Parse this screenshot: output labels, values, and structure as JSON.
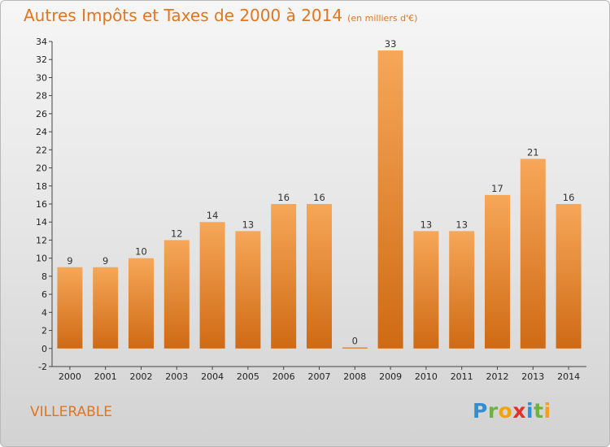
{
  "header": {
    "title": "Autres Impôts et Taxes de 2000 à 2014",
    "subtitle": "(en milliers d'€)"
  },
  "commune": "VILLERABLE",
  "logo": {
    "text": "Proxiti"
  },
  "colors": {
    "bar_top": "#f6a758",
    "bar_bottom": "#cf6a14",
    "title": "#e0761f"
  },
  "chart_data": {
    "type": "bar",
    "title": "Autres Impôts et Taxes de 2000 à 2014",
    "subtitle": "(en milliers d'€)",
    "categories": [
      "2000",
      "2001",
      "2002",
      "2003",
      "2004",
      "2005",
      "2006",
      "2007",
      "2008",
      "2009",
      "2010",
      "2011",
      "2012",
      "2013",
      "2014"
    ],
    "values": [
      9,
      9,
      10,
      12,
      14,
      13,
      16,
      16,
      0,
      33,
      13,
      13,
      17,
      21,
      16
    ],
    "ylim": [
      -2,
      34
    ],
    "yticks": [
      -2,
      0,
      2,
      4,
      6,
      8,
      10,
      12,
      14,
      16,
      18,
      20,
      22,
      24,
      26,
      28,
      30,
      32,
      34
    ],
    "grid": false,
    "legend": "none"
  }
}
